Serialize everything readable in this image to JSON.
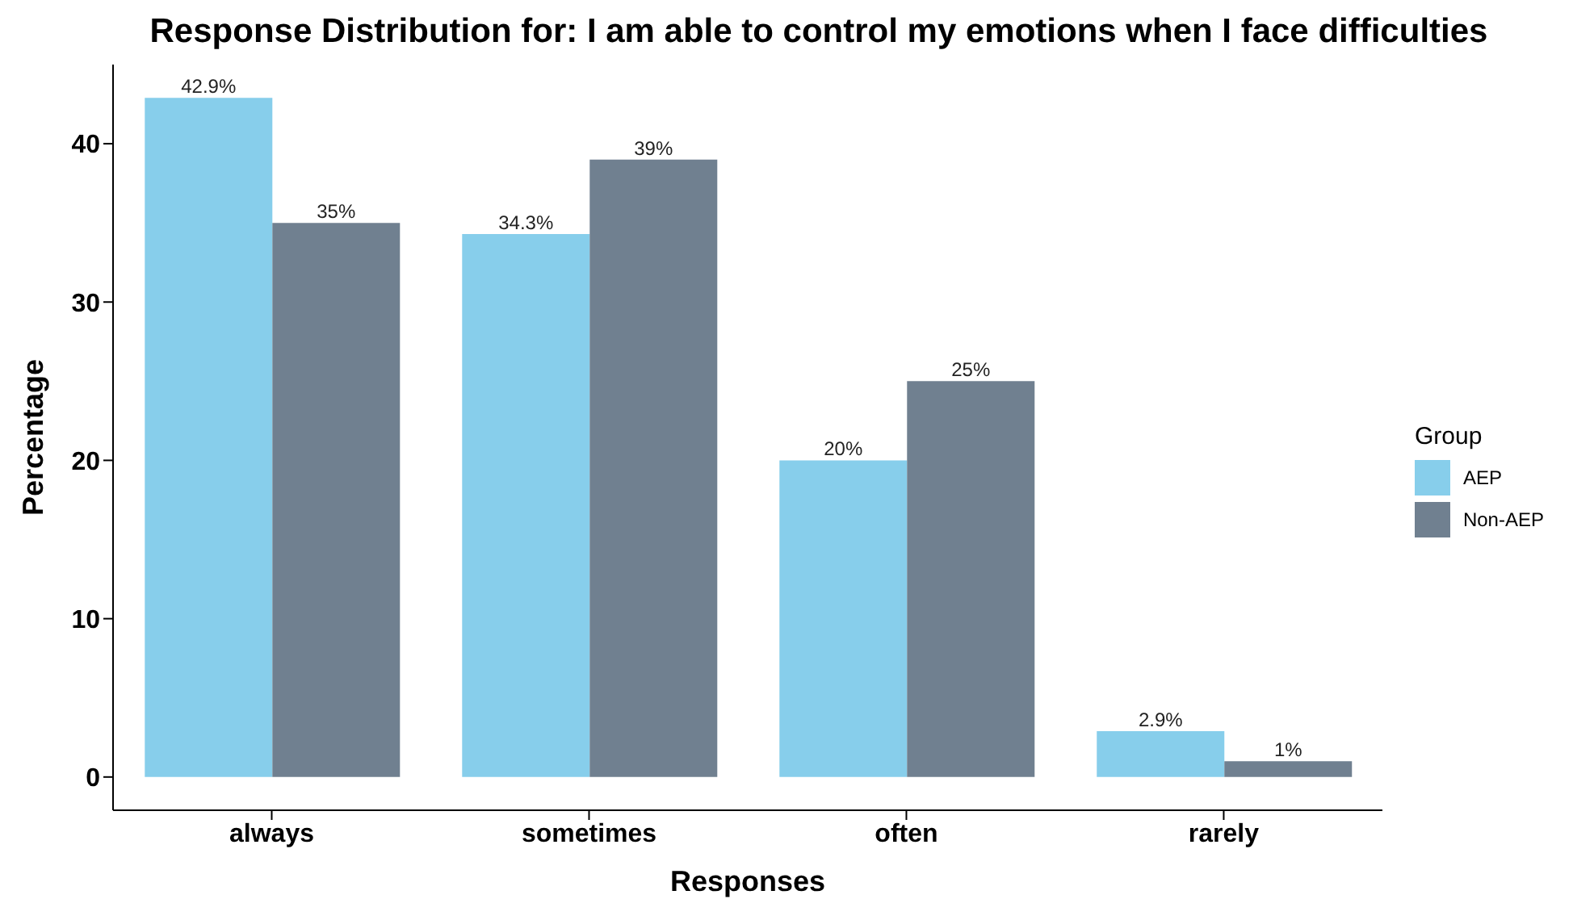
{
  "chart_data": {
    "type": "bar",
    "title": "Response Distribution for: I am able to control my emotions when I face difficulties",
    "xlabel": "Responses",
    "ylabel": "Percentage",
    "legend_title": "Group",
    "categories": [
      "always",
      "sometimes",
      "often",
      "rarely"
    ],
    "series": [
      {
        "name": "AEP",
        "color": "#87ceeb",
        "values": [
          42.9,
          34.3,
          20,
          2.9
        ],
        "value_labels": [
          "42.9%",
          "34.3%",
          "20%",
          "2.9%"
        ]
      },
      {
        "name": "Non-AEP",
        "color": "#708090",
        "values": [
          35,
          39,
          25,
          1
        ],
        "value_labels": [
          "35%",
          "39%",
          "25%",
          "1%"
        ]
      }
    ],
    "ylim": [
      -2.1,
      45
    ],
    "yticks": [
      0,
      10,
      20,
      30,
      40
    ],
    "grid": false,
    "legend": "right"
  }
}
